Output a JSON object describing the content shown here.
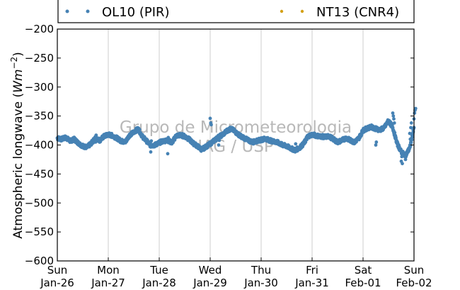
{
  "chart_data": {
    "type": "scatter",
    "title": "",
    "ylabel": "Atmospheric longwave",
    "ylabel_unit": "Wm^-2",
    "ylim": [
      -600,
      -200
    ],
    "yticks": [
      -200,
      -250,
      -300,
      -350,
      -400,
      -450,
      -500,
      -550,
      -600
    ],
    "x_start": "2014-01-26",
    "x_end": "2014-02-02",
    "xticks": [
      {
        "date": "2014-01-26",
        "day": "Sun",
        "label": "Jan-26"
      },
      {
        "date": "2014-01-27",
        "day": "Mon",
        "label": "Jan-27"
      },
      {
        "date": "2014-01-28",
        "day": "Tue",
        "label": "Jan-28"
      },
      {
        "date": "2014-01-29",
        "day": "Wed",
        "label": "Jan-29"
      },
      {
        "date": "2014-01-30",
        "day": "Thu",
        "label": "Jan-30"
      },
      {
        "date": "2014-01-31",
        "day": "Fri",
        "label": "Jan-31"
      },
      {
        "date": "2014-02-01",
        "day": "Sat",
        "label": "Feb-01"
      },
      {
        "date": "2014-02-02",
        "day": "Sun",
        "label": "Feb-02"
      }
    ],
    "grid": "vertical",
    "legend_position": "top",
    "watermark": [
      "Grupo de Micrometeorologia",
      "IAG / USP"
    ],
    "series": [
      {
        "name": "OL10 (PIR)",
        "color": "#4682b4",
        "x": [
          "2014-01-26 00:00",
          "2014-01-26 02:00",
          "2014-01-26 04:00",
          "2014-01-26 06:00",
          "2014-01-26 08:00",
          "2014-01-26 10:00",
          "2014-01-26 12:00",
          "2014-01-26 14:00",
          "2014-01-26 16:00",
          "2014-01-26 18:00",
          "2014-01-26 20:00",
          "2014-01-26 22:00",
          "2014-01-27 00:00",
          "2014-01-27 02:00",
          "2014-01-27 04:00",
          "2014-01-27 06:00",
          "2014-01-27 08:00",
          "2014-01-27 10:00",
          "2014-01-27 12:00",
          "2014-01-27 14:00",
          "2014-01-27 16:00",
          "2014-01-27 18:00",
          "2014-01-27 20:00",
          "2014-01-27 22:00",
          "2014-01-28 00:00",
          "2014-01-28 02:00",
          "2014-01-28 04:00",
          "2014-01-28 06:00",
          "2014-01-28 08:00",
          "2014-01-28 10:00",
          "2014-01-28 12:00",
          "2014-01-28 14:00",
          "2014-01-28 16:00",
          "2014-01-28 18:00",
          "2014-01-28 20:00",
          "2014-01-28 22:00",
          "2014-01-29 00:00",
          "2014-01-29 02:00",
          "2014-01-29 04:00",
          "2014-01-29 06:00",
          "2014-01-29 08:00",
          "2014-01-29 10:00",
          "2014-01-29 12:00",
          "2014-01-29 14:00",
          "2014-01-29 16:00",
          "2014-01-29 18:00",
          "2014-01-29 20:00",
          "2014-01-29 22:00",
          "2014-01-30 00:00",
          "2014-01-30 02:00",
          "2014-01-30 04:00",
          "2014-01-30 06:00",
          "2014-01-30 08:00",
          "2014-01-30 10:00",
          "2014-01-30 12:00",
          "2014-01-30 14:00",
          "2014-01-30 16:00",
          "2014-01-30 18:00",
          "2014-01-30 20:00",
          "2014-01-30 22:00",
          "2014-01-31 00:00",
          "2014-01-31 02:00",
          "2014-01-31 04:00",
          "2014-01-31 06:00",
          "2014-01-31 08:00",
          "2014-01-31 10:00",
          "2014-01-31 12:00",
          "2014-01-31 14:00",
          "2014-01-31 16:00",
          "2014-01-31 18:00",
          "2014-01-31 20:00",
          "2014-01-31 22:00",
          "2014-02-01 00:00",
          "2014-02-01 02:00",
          "2014-02-01 04:00",
          "2014-02-01 06:00",
          "2014-02-01 08:00",
          "2014-02-01 10:00",
          "2014-02-01 12:00",
          "2014-02-01 14:00",
          "2014-02-01 16:00",
          "2014-02-01 18:00",
          "2014-02-01 20:00",
          "2014-02-01 22:00",
          "2014-02-02 00:00"
        ],
        "y": [
          -388,
          -390,
          -387,
          -393,
          -390,
          -397,
          -402,
          -404,
          -397,
          -388,
          -392,
          -385,
          -382,
          -384,
          -388,
          -393,
          -395,
          -383,
          -378,
          -372,
          -385,
          -393,
          -401,
          -400,
          -396,
          -393,
          -392,
          -396,
          -384,
          -383,
          -385,
          -390,
          -397,
          -402,
          -408,
          -403,
          -398,
          -392,
          -386,
          -382,
          -375,
          -372,
          -378,
          -384,
          -388,
          -392,
          -395,
          -393,
          -391,
          -389,
          -392,
          -394,
          -396,
          -400,
          -402,
          -406,
          -409,
          -405,
          -398,
          -385,
          -382,
          -384,
          -385,
          -386,
          -385,
          -390,
          -395,
          -392,
          -388,
          -392,
          -395,
          -388,
          -375,
          -371,
          -369,
          -372,
          -374,
          -370,
          -358,
          -370,
          -397,
          -412,
          -418,
          -405,
          -370
        ],
        "markers": {
          "2014-01-26 18:00": [
            -395,
            -383
          ],
          "2014-01-27 20:00": [
            -412,
            -393
          ],
          "2014-01-28 04:00": [
            -415,
            -387
          ],
          "2014-01-29 00:00": [
            -354,
            -362,
            -365
          ],
          "2014-01-29 04:00": [
            -400,
            -392
          ],
          "2014-01-30 16:00": [
            -412,
            -398
          ],
          "2014-02-01 06:00": [
            -400,
            -395
          ],
          "2014-02-01 14:00": [
            -345,
            -350,
            -355,
            -362
          ],
          "2014-02-01 18:00": [
            -428,
            -420,
            -432
          ],
          "2014-02-01 20:00": [
            -425,
            -415
          ],
          "2014-02-01 22:00": [
            -380,
            -390,
            -370,
            -362
          ],
          "2014-02-02 00:00": [
            -355,
            -345,
            -340,
            -337
          ]
        }
      },
      {
        "name": "NT13 (CNR4)",
        "color": "#d4a017",
        "x": [],
        "y": []
      }
    ]
  }
}
